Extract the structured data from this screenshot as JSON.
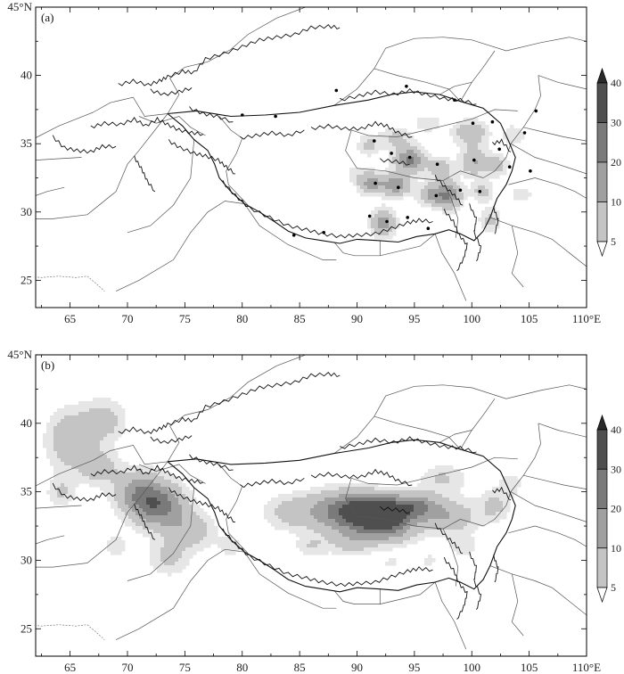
{
  "figure": {
    "x_axis": {
      "range": [
        62,
        110
      ],
      "ticks": [
        65,
        70,
        75,
        80,
        85,
        90,
        95,
        100,
        105,
        110
      ],
      "tick_labels": [
        "65",
        "70",
        "75",
        "80",
        "85",
        "90",
        "95",
        "100",
        "105",
        "110°E"
      ]
    },
    "y_axis": {
      "range": [
        23,
        45
      ],
      "ticks": [
        25,
        30,
        35,
        40,
        45
      ],
      "tick_labels": [
        "25",
        "30",
        "35",
        "40",
        "45°N"
      ]
    },
    "colorbar": {
      "levels": [
        5,
        10,
        20,
        30,
        40
      ],
      "labels": [
        "5",
        "10",
        "20",
        "30",
        "40"
      ],
      "fill_colors": [
        "#e6e6e6",
        "#c4c4c4",
        "#a0a0a0",
        "#7a7a7a",
        "#4f4f4f"
      ],
      "extend": "both"
    },
    "panels": [
      {
        "label": "(a)",
        "stations": [
          [
            80.0,
            37.1
          ],
          [
            82.9,
            37.0
          ],
          [
            88.2,
            38.9
          ],
          [
            94.3,
            39.2
          ],
          [
            98.5,
            38.2
          ],
          [
            91.5,
            35.2
          ],
          [
            93.0,
            34.3
          ],
          [
            94.6,
            34.0
          ],
          [
            97.0,
            33.5
          ],
          [
            100.2,
            33.8
          ],
          [
            102.4,
            34.6
          ],
          [
            104.6,
            35.8
          ],
          [
            91.6,
            32.1
          ],
          [
            93.6,
            31.8
          ],
          [
            96.9,
            31.2
          ],
          [
            99.0,
            31.6
          ],
          [
            100.7,
            31.5
          ],
          [
            103.3,
            33.3
          ],
          [
            105.1,
            33.0
          ],
          [
            91.1,
            29.7
          ],
          [
            92.6,
            29.3
          ],
          [
            94.4,
            29.6
          ],
          [
            87.1,
            28.5
          ],
          [
            84.5,
            28.3
          ],
          [
            96.2,
            28.8
          ],
          [
            100.1,
            36.5
          ],
          [
            101.8,
            36.6
          ],
          [
            105.6,
            37.4
          ]
        ],
        "value_blobs": [
          [
            91.0,
            34.9,
            1.0,
            0.8,
            12
          ],
          [
            93.4,
            35.4,
            1.4,
            0.8,
            12
          ],
          [
            94.6,
            33.8,
            1.3,
            0.9,
            32
          ],
          [
            97.3,
            33.2,
            1.1,
            0.8,
            15
          ],
          [
            99.9,
            35.8,
            1.5,
            0.9,
            18
          ],
          [
            100.2,
            33.7,
            1.2,
            1.0,
            20
          ],
          [
            102.2,
            33.4,
            1.0,
            0.8,
            14
          ],
          [
            91.2,
            32.1,
            1.1,
            0.8,
            24
          ],
          [
            93.4,
            32.0,
            1.2,
            0.8,
            28
          ],
          [
            96.5,
            31.3,
            1.2,
            0.8,
            20
          ],
          [
            98.0,
            31.2,
            1.1,
            1.0,
            28
          ],
          [
            100.9,
            31.5,
            1.0,
            0.7,
            13
          ],
          [
            101.6,
            29.4,
            1.0,
            1.0,
            12
          ],
          [
            92.3,
            29.2,
            1.0,
            1.0,
            26
          ],
          [
            103.6,
            35.6,
            1.0,
            0.8,
            10
          ],
          [
            96.2,
            36.5,
            1.2,
            0.7,
            9
          ],
          [
            104.3,
            31.3,
            1.0,
            0.6,
            9
          ],
          [
            89.8,
            32.8,
            0.8,
            0.6,
            7
          ]
        ]
      },
      {
        "label": "(b)",
        "stations": [],
        "value_blobs": [
          [
            65.0,
            38.8,
            2.0,
            2.2,
            18
          ],
          [
            68.0,
            40.2,
            1.8,
            1.6,
            14
          ],
          [
            67.5,
            36.8,
            1.6,
            1.2,
            16
          ],
          [
            70.8,
            35.0,
            2.0,
            1.6,
            22
          ],
          [
            72.8,
            34.0,
            2.2,
            1.6,
            34
          ],
          [
            75.5,
            32.2,
            2.0,
            1.3,
            16
          ],
          [
            73.6,
            30.2,
            1.8,
            1.3,
            12
          ],
          [
            64.2,
            35.0,
            1.2,
            1.0,
            11
          ],
          [
            69.0,
            31.0,
            1.2,
            0.9,
            8
          ],
          [
            79.0,
            31.0,
            1.3,
            0.9,
            7
          ],
          [
            84.0,
            33.5,
            2.3,
            1.3,
            12
          ],
          [
            87.5,
            33.6,
            2.6,
            1.5,
            18
          ],
          [
            90.0,
            33.5,
            2.4,
            1.4,
            36
          ],
          [
            92.2,
            33.4,
            2.0,
            1.2,
            46
          ],
          [
            95.0,
            33.9,
            2.0,
            1.0,
            30
          ],
          [
            93.0,
            32.2,
            2.4,
            1.1,
            18
          ],
          [
            89.5,
            31.3,
            2.0,
            0.9,
            13
          ],
          [
            86.0,
            31.0,
            1.4,
            0.8,
            9
          ],
          [
            98.0,
            33.2,
            2.4,
            1.3,
            18
          ],
          [
            97.5,
            36.0,
            2.0,
            1.0,
            11
          ],
          [
            102.0,
            34.0,
            1.4,
            1.2,
            12
          ],
          [
            103.4,
            35.6,
            1.0,
            0.8,
            9
          ],
          [
            99.2,
            31.0,
            1.2,
            0.8,
            9
          ],
          [
            96.3,
            30.0,
            1.0,
            0.7,
            6
          ],
          [
            93.0,
            29.8,
            1.0,
            0.6,
            6
          ]
        ]
      }
    ]
  }
}
